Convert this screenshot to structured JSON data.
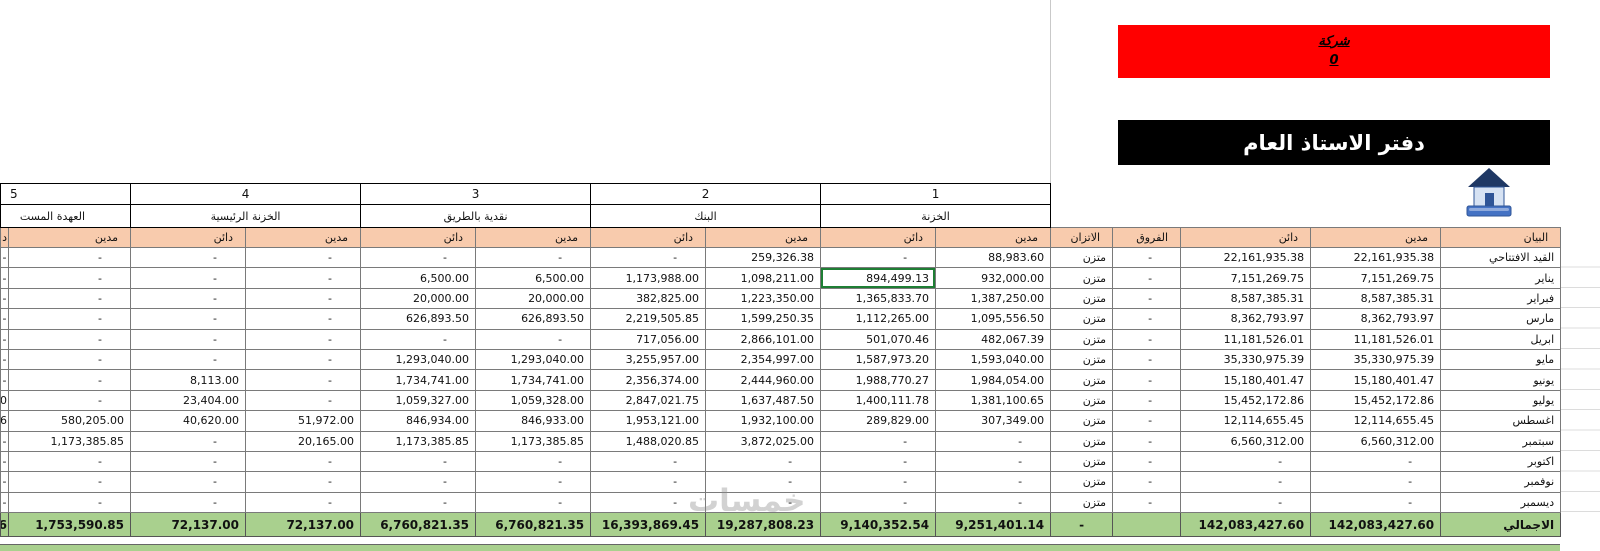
{
  "company_banner": {
    "line1": "شركة",
    "line2": "0",
    "bg": "#ff0000"
  },
  "title_banner": {
    "text": "دفتر الاستاذ العام",
    "bg": "#000000",
    "fg": "#ffffff"
  },
  "watermark": {
    "text": "خمسات"
  },
  "table": {
    "group_numbers": [
      "5",
      "4",
      "3",
      "2",
      "1"
    ],
    "groups": [
      "العهدة المست",
      "الخزنة الرئيسية",
      "نقدية بالطريق",
      "البنك",
      "الخزنة"
    ],
    "sub_headers": [
      "دائن",
      "مدين",
      "دائن",
      "مدين",
      "دائن",
      "مدين",
      "دائن",
      "مدين",
      "دائن",
      "مدين",
      "الاتزان",
      "الفروق",
      "دائن",
      "مدين",
      "البيان"
    ],
    "rows": [
      [
        "-",
        "-",
        "-",
        "-",
        "-",
        "-",
        "-",
        "259,326.38",
        "-",
        "88,983.60",
        "متزن",
        "-",
        "22,161,935.38",
        "22,161,935.38",
        "القيد الافتتاحي"
      ],
      [
        "-",
        "-",
        "-",
        "-",
        "6,500.00",
        "6,500.00",
        "1,173,988.00",
        "1,098,211.00",
        "894,499.13",
        "932,000.00",
        "متزن",
        "-",
        "7,151,269.75",
        "7,151,269.75",
        "يناير"
      ],
      [
        "-",
        "-",
        "-",
        "-",
        "20,000.00",
        "20,000.00",
        "382,825.00",
        "1,223,350.00",
        "1,365,833.70",
        "1,387,250.00",
        "متزن",
        "-",
        "8,587,385.31",
        "8,587,385.31",
        "فبراير"
      ],
      [
        "-",
        "-",
        "-",
        "-",
        "626,893.50",
        "626,893.50",
        "2,219,505.85",
        "1,599,250.35",
        "1,112,265.00",
        "1,095,556.50",
        "متزن",
        "-",
        "8,362,793.97",
        "8,362,793.97",
        "مارس"
      ],
      [
        "-",
        "-",
        "-",
        "-",
        "-",
        "-",
        "717,056.00",
        "2,866,101.00",
        "501,070.46",
        "482,067.39",
        "متزن",
        "-",
        "11,181,526.01",
        "11,181,526.01",
        "ابريل"
      ],
      [
        "-",
        "-",
        "-",
        "-",
        "1,293,040.00",
        "1,293,040.00",
        "3,255,957.00",
        "2,354,997.00",
        "1,587,973.20",
        "1,593,040.00",
        "متزن",
        "-",
        "35,330,975.39",
        "35,330,975.39",
        "مايو"
      ],
      [
        "-",
        "-",
        "8,113.00",
        "-",
        "1,734,741.00",
        "1,734,741.00",
        "2,356,374.00",
        "2,444,960.00",
        "1,988,770.27",
        "1,984,054.00",
        "متزن",
        "-",
        "15,180,401.47",
        "15,180,401.47",
        "يونيو"
      ],
      [
        "0",
        "-",
        "23,404.00",
        "-",
        "1,059,327.00",
        "1,059,328.00",
        "2,847,021.75",
        "1,637,487.50",
        "1,400,111.78",
        "1,381,100.65",
        "متزن",
        "-",
        "15,452,172.86",
        "15,452,172.86",
        "يوليو"
      ],
      [
        "6",
        "580,205.00",
        "40,620.00",
        "51,972.00",
        "846,934.00",
        "846,933.00",
        "1,953,121.00",
        "1,932,100.00",
        "289,829.00",
        "307,349.00",
        "متزن",
        "-",
        "12,114,655.45",
        "12,114,655.45",
        "اغسطس"
      ],
      [
        "-",
        "1,173,385.85",
        "-",
        "20,165.00",
        "1,173,385.85",
        "1,173,385.85",
        "1,488,020.85",
        "3,872,025.00",
        "-",
        "-",
        "متزن",
        "-",
        "6,560,312.00",
        "6,560,312.00",
        "سبتمبر"
      ],
      [
        "-",
        "-",
        "-",
        "-",
        "-",
        "-",
        "-",
        "-",
        "-",
        "-",
        "متزن",
        "-",
        "-",
        "-",
        "اكتوبر"
      ],
      [
        "-",
        "-",
        "-",
        "-",
        "-",
        "-",
        "-",
        "-",
        "-",
        "-",
        "متزن",
        "-",
        "-",
        "-",
        "نوفمبر"
      ],
      [
        "-",
        "-",
        "-",
        "-",
        "-",
        "-",
        "-",
        "-",
        "-",
        "-",
        "متزن",
        "-",
        "-",
        "-",
        "ديسمبر"
      ]
    ],
    "total": [
      "6",
      "1,753,590.85",
      "72,137.00",
      "72,137.00",
      "6,760,821.35",
      "6,760,821.35",
      "16,393,869.45",
      "19,287,808.23",
      "9,140,352.54",
      "9,251,401.14",
      "-",
      "",
      "142,083,427.60",
      "142,083,427.60",
      "الاجمالي"
    ],
    "selection": {
      "row": 1,
      "col": 8
    },
    "colors": {
      "subheader_bg": "#f8cbad",
      "total_bg": "#a9d08e",
      "banner_red": "#ff0000",
      "banner_black": "#000000",
      "selection_green": "#1e7e34"
    }
  }
}
